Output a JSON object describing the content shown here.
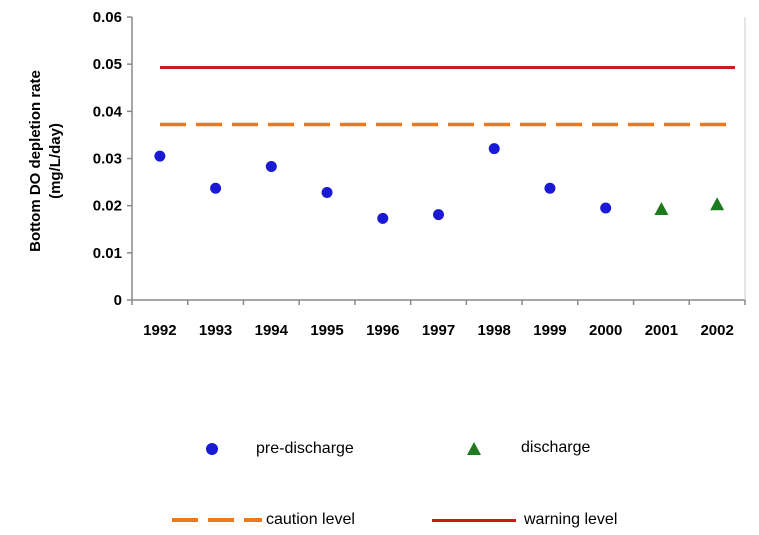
{
  "colors": {
    "pre_discharge": "#1a1ad6",
    "discharge": "#1e7a1e",
    "caution": "#f07818",
    "warning": "#d01818",
    "axis": "#888888"
  },
  "chart_data": {
    "type": "scatter",
    "ylabel_line1": "Bottom DO depletion rate",
    "ylabel_line2": "(mg/L/day)",
    "categories": [
      "1992",
      "1993",
      "1994",
      "1995",
      "1996",
      "1997",
      "1998",
      "1999",
      "2000",
      "2001",
      "2002"
    ],
    "yticks": [
      "0",
      "0.01",
      "0.02",
      "0.03",
      "0.04",
      "0.05",
      "0.06"
    ],
    "ylim": [
      0,
      0.06
    ],
    "series": [
      {
        "name": "pre-discharge",
        "marker": "circle",
        "x": [
          "1992",
          "1993",
          "1994",
          "1995",
          "1996",
          "1997",
          "1998",
          "1999",
          "2000"
        ],
        "values": [
          0.0305,
          0.0237,
          0.0283,
          0.0228,
          0.0173,
          0.0181,
          0.0321,
          0.0237,
          0.0195
        ]
      },
      {
        "name": "discharge",
        "marker": "triangle",
        "x": [
          "2001",
          "2002"
        ],
        "values": [
          0.0193,
          0.0203
        ]
      }
    ],
    "reference_lines": [
      {
        "name": "caution level",
        "value": 0.0372,
        "style": "dashed"
      },
      {
        "name": "warning level",
        "value": 0.0493,
        "style": "solid"
      }
    ],
    "grid": false,
    "legend_position": "bottom"
  },
  "legend": {
    "pre_discharge": "pre-discharge",
    "discharge": "discharge",
    "caution": "caution level",
    "warning": "warning level"
  }
}
